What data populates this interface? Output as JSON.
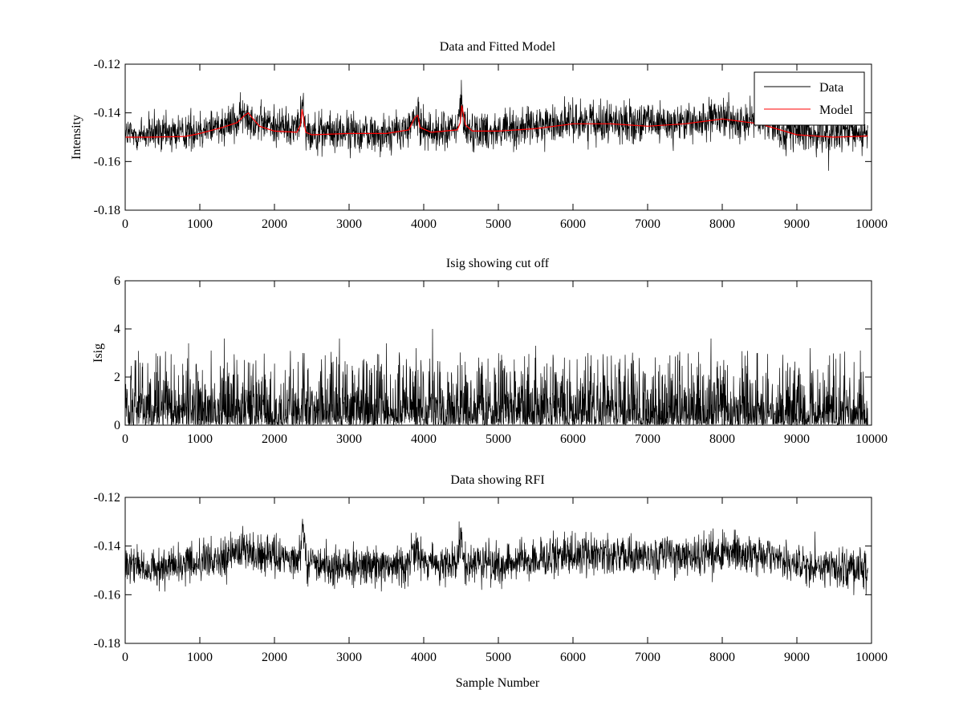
{
  "chart_data": [
    {
      "type": "line",
      "title": "Data and Fitted Model",
      "xlabel": "",
      "ylabel": "Intensity",
      "xlim": [
        0,
        10000
      ],
      "ylim": [
        -0.18,
        -0.12
      ],
      "xticks": [
        "0",
        "1000",
        "2000",
        "3000",
        "4000",
        "5000",
        "6000",
        "7000",
        "8000",
        "9000",
        "10000"
      ],
      "yticks": [
        "-0.12",
        "-0.14",
        "-0.16",
        "-0.18"
      ],
      "legend": {
        "position": "top-right",
        "entries": [
          "Data",
          "Model"
        ]
      },
      "colors": {
        "data": "#000000",
        "model": "#ff0000"
      },
      "series": [
        {
          "name": "Data",
          "kind": "noisy",
          "noise": 0.012,
          "baseline_x": [
            0,
            200,
            500,
            800,
            1000,
            1300,
            1500,
            1600,
            1700,
            1800,
            2000,
            2300,
            2350,
            2380,
            2420,
            2600,
            3000,
            3500,
            3800,
            3880,
            3950,
            4100,
            4450,
            4500,
            4530,
            4600,
            5000,
            5500,
            6000,
            6500,
            7000,
            7500,
            8000,
            8500,
            9000,
            9500,
            9950
          ],
          "baseline_y": [
            -0.149,
            -0.149,
            -0.1488,
            -0.1478,
            -0.1468,
            -0.1445,
            -0.143,
            -0.141,
            -0.1425,
            -0.144,
            -0.145,
            -0.146,
            -0.142,
            -0.133,
            -0.147,
            -0.148,
            -0.148,
            -0.1485,
            -0.147,
            -0.141,
            -0.145,
            -0.148,
            -0.147,
            -0.133,
            -0.145,
            -0.147,
            -0.147,
            -0.146,
            -0.143,
            -0.1435,
            -0.1445,
            -0.144,
            -0.143,
            -0.143,
            -0.148,
            -0.149,
            -0.148
          ]
        },
        {
          "name": "Model",
          "kind": "line",
          "x": [
            0,
            300,
            800,
            1000,
            1300,
            1500,
            1600,
            1650,
            1700,
            1800,
            2000,
            2300,
            2350,
            2370,
            2420,
            2500,
            3000,
            3500,
            3800,
            3880,
            3920,
            3950,
            4100,
            4450,
            4490,
            4510,
            4560,
            4650,
            5000,
            5500,
            6000,
            6500,
            7000,
            7500,
            8000,
            8500,
            9000,
            9500,
            9950
          ],
          "y": [
            -0.15,
            -0.15,
            -0.1497,
            -0.1485,
            -0.146,
            -0.144,
            -0.141,
            -0.14,
            -0.142,
            -0.1455,
            -0.1475,
            -0.148,
            -0.145,
            -0.1385,
            -0.148,
            -0.149,
            -0.1485,
            -0.1485,
            -0.147,
            -0.142,
            -0.141,
            -0.146,
            -0.148,
            -0.147,
            -0.144,
            -0.137,
            -0.145,
            -0.1475,
            -0.1475,
            -0.1465,
            -0.1445,
            -0.1445,
            -0.1455,
            -0.1445,
            -0.1425,
            -0.1445,
            -0.149,
            -0.15,
            -0.1495
          ]
        }
      ]
    },
    {
      "type": "line",
      "title": "Isig showing cut off",
      "xlabel": "",
      "ylabel": "Isig",
      "xlim": [
        0,
        10000
      ],
      "ylim": [
        0,
        6
      ],
      "xticks": [
        "0",
        "1000",
        "2000",
        "3000",
        "4000",
        "5000",
        "6000",
        "7000",
        "8000",
        "9000",
        "10000"
      ],
      "yticks": [
        "0",
        "2",
        "4",
        "6"
      ],
      "series": [
        {
          "name": "Isig",
          "kind": "isig",
          "typical_max": 2.0,
          "peak_max": 4.0,
          "spikes_x": [
            850,
            1150,
            1330,
            2380,
            2870,
            3500,
            3900,
            4120,
            5500,
            6200,
            7300,
            7850,
            8470,
            9180,
            9850
          ],
          "spikes_y": [
            3.4,
            3.1,
            3.6,
            3.0,
            3.6,
            3.4,
            3.2,
            4.0,
            3.3,
            3.0,
            2.9,
            3.6,
            3.0,
            3.2,
            3.1
          ]
        }
      ]
    },
    {
      "type": "line",
      "title": "Data showing RFI",
      "xlabel": "Sample Number",
      "ylabel": "",
      "xlim": [
        0,
        10000
      ],
      "ylim": [
        -0.18,
        -0.12
      ],
      "xticks": [
        "0",
        "1000",
        "2000",
        "3000",
        "4000",
        "5000",
        "6000",
        "7000",
        "8000",
        "9000",
        "10000"
      ],
      "yticks": [
        "-0.12",
        "-0.14",
        "-0.16",
        "-0.18"
      ],
      "series": [
        {
          "name": "Data",
          "kind": "noisy",
          "noise": 0.012,
          "baseline_x": [
            0,
            200,
            500,
            800,
            1000,
            1300,
            1500,
            1600,
            1700,
            1800,
            2000,
            2300,
            2350,
            2380,
            2420,
            2600,
            3000,
            3500,
            3800,
            3880,
            3950,
            4100,
            4450,
            4500,
            4530,
            4600,
            5000,
            5500,
            6000,
            6500,
            7000,
            7500,
            8000,
            8500,
            9000,
            9500,
            9950
          ],
          "baseline_y": [
            -0.149,
            -0.149,
            -0.1488,
            -0.1478,
            -0.1468,
            -0.1445,
            -0.143,
            -0.141,
            -0.1425,
            -0.144,
            -0.145,
            -0.146,
            -0.142,
            -0.133,
            -0.147,
            -0.148,
            -0.148,
            -0.1485,
            -0.147,
            -0.141,
            -0.145,
            -0.148,
            -0.147,
            -0.133,
            -0.145,
            -0.147,
            -0.147,
            -0.146,
            -0.143,
            -0.1435,
            -0.1445,
            -0.144,
            -0.143,
            -0.143,
            -0.148,
            -0.149,
            -0.148
          ]
        }
      ]
    }
  ]
}
